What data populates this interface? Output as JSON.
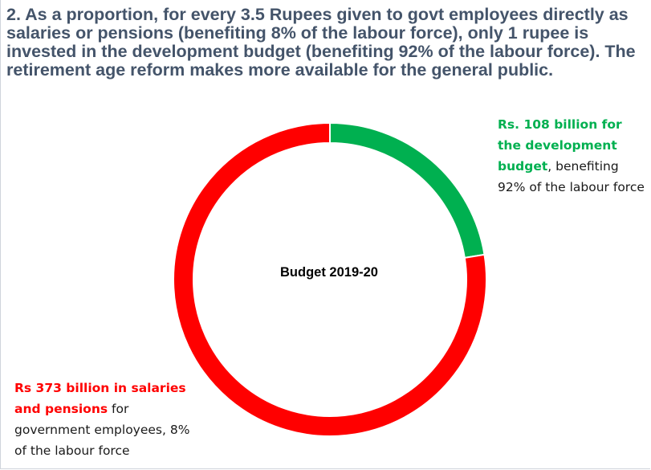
{
  "headline": "2. As a proportion, for every 3.5 Rupees given to govt employees directly as salaries or pensions (benefiting 8% of the labour force), only 1 rupee is invested in the development budget (benefiting 92% of the labour force). The retirement age reform makes more available for the general public.",
  "chart_data": {
    "type": "pie",
    "donut": true,
    "center_label": "Budget 2019-20",
    "slices": [
      {
        "label": "Rs. 108 billion for the development budget",
        "value": 108,
        "color": "#00b050"
      },
      {
        "label": "Rs 373 billion in salaries and pensions",
        "value": 373,
        "color": "#ff0000"
      }
    ]
  },
  "annotations": {
    "development": {
      "highlight": "Rs. 108 billion for the development budget",
      "rest_1": ",",
      "rest_2": "benefiting 92% of the labour force",
      "color": "#00b050"
    },
    "salaries": {
      "highlight": "Rs 373 billion in salaries and pensions",
      "rest_1": " for",
      "rest_2": "government employees, 8% of the labour force",
      "color": "#ff0000"
    }
  }
}
